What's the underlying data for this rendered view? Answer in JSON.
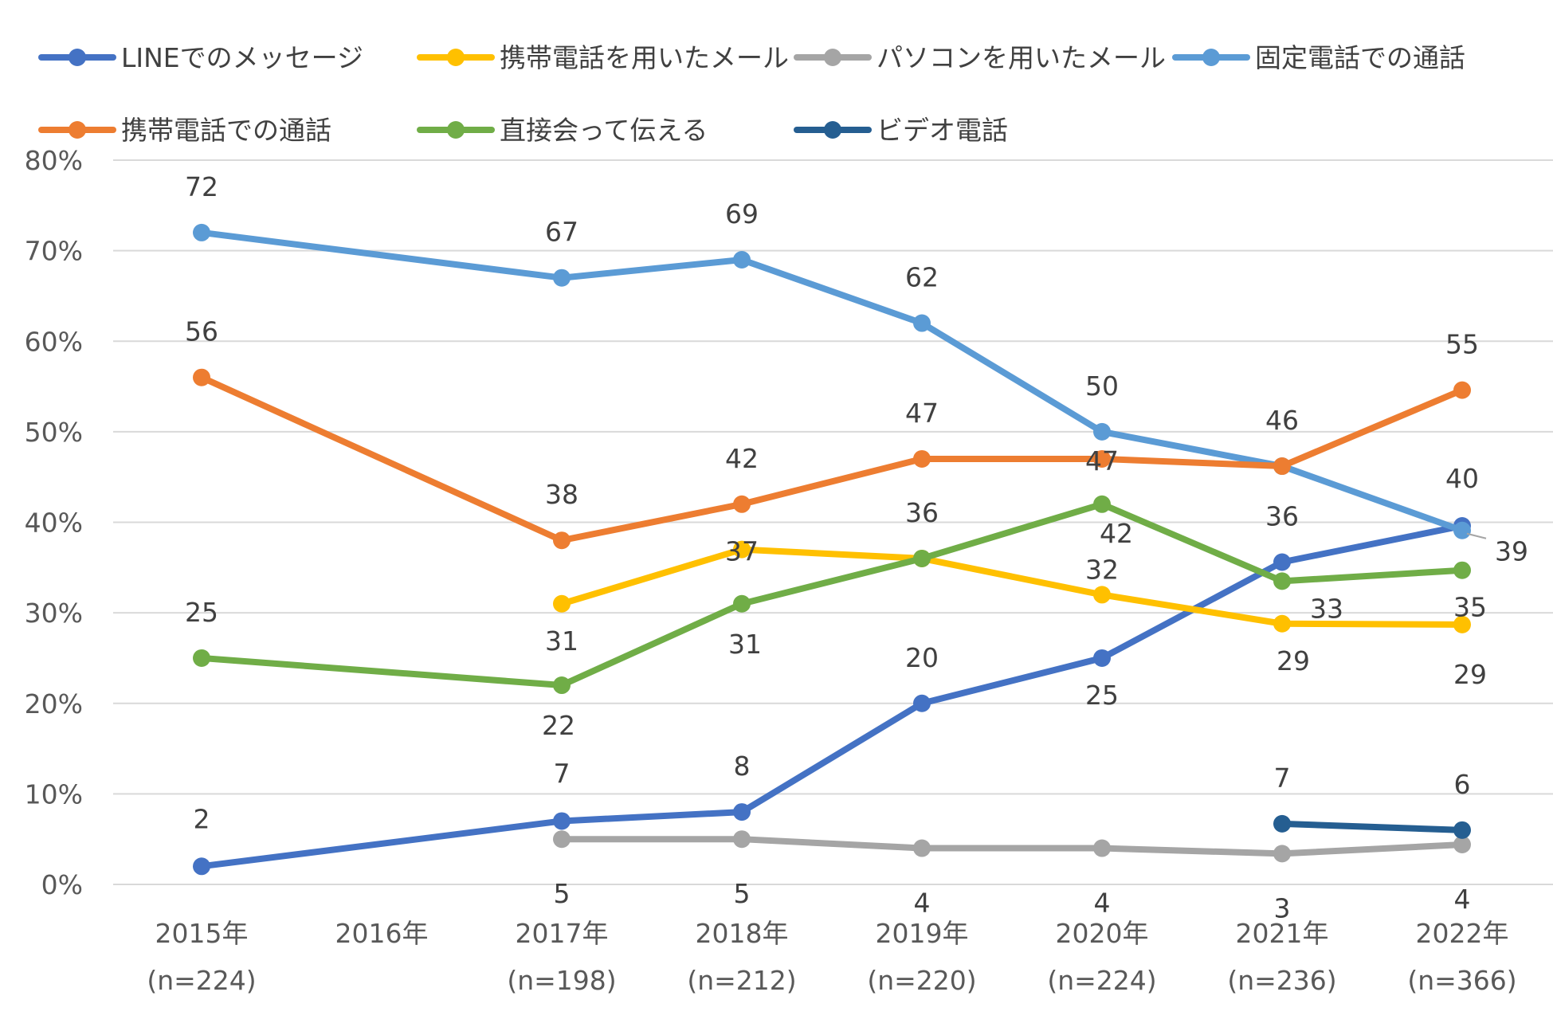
{
  "chart_data": {
    "type": "line",
    "categories": [
      "2015年",
      "2016年",
      "2017年",
      "2018年",
      "2019年",
      "2020年",
      "2021年",
      "2022年"
    ],
    "category_sublabels": [
      "(n=224)",
      "",
      "(n=198)",
      "(n=212)",
      "(n=220)",
      "(n=224)",
      "(n=236)",
      "(n=366)"
    ],
    "ylim": [
      0,
      80
    ],
    "yticks": [
      0,
      10,
      20,
      30,
      40,
      50,
      60,
      70,
      80
    ],
    "ytick_labels": [
      "0%",
      "10%",
      "20%",
      "30%",
      "40%",
      "50%",
      "60%",
      "70%",
      "80%"
    ],
    "grid": true,
    "legend_position": "top",
    "series": [
      {
        "name": "LINEでのメッセージ",
        "color": "#4472c4",
        "values": [
          2,
          null,
          7,
          8,
          20,
          25,
          35.6,
          39.6
        ],
        "labels": [
          "2",
          "",
          "7",
          "8",
          "20",
          "25",
          "36",
          "40"
        ]
      },
      {
        "name": "携帯電話を用いたメール",
        "color": "#ffc000",
        "values": [
          null,
          null,
          31,
          37,
          36,
          32,
          28.8,
          28.7
        ],
        "labels": [
          "",
          "",
          "31",
          "37",
          "36",
          "32",
          "29",
          "29"
        ]
      },
      {
        "name": "パソコンを用いたメール",
        "color": "#a5a5a5",
        "values": [
          null,
          null,
          5,
          5,
          4,
          4,
          3.4,
          4.4
        ],
        "labels": [
          "",
          "",
          "5",
          "5",
          "4",
          "4",
          "3",
          "4"
        ]
      },
      {
        "name": "固定電話での通話",
        "color": "#5b9bd5",
        "values": [
          72,
          null,
          67,
          69,
          62,
          50,
          46.2,
          39.1
        ],
        "labels": [
          "72",
          "",
          "67",
          "69",
          "62",
          "50",
          "46",
          "39"
        ]
      },
      {
        "name": "携帯電話での通話",
        "color": "#ed7d31",
        "values": [
          56,
          null,
          38,
          42,
          47,
          47,
          46.2,
          54.6
        ],
        "labels": [
          "56",
          "",
          "38",
          "42",
          "47",
          "47",
          "",
          "55"
        ]
      },
      {
        "name": "直接会って伝える",
        "color": "#70ad47",
        "values": [
          25,
          null,
          22,
          31,
          36,
          42,
          33.5,
          34.7
        ],
        "labels": [
          "25",
          "",
          "22",
          "31",
          "",
          "42",
          "33",
          "35"
        ]
      },
      {
        "name": "ビデオ電話",
        "color": "#255e91",
        "values": [
          null,
          null,
          null,
          null,
          null,
          null,
          6.7,
          6.0
        ],
        "labels": [
          "",
          "",
          "",
          "",
          "",
          "",
          "7",
          "6"
        ]
      }
    ]
  }
}
